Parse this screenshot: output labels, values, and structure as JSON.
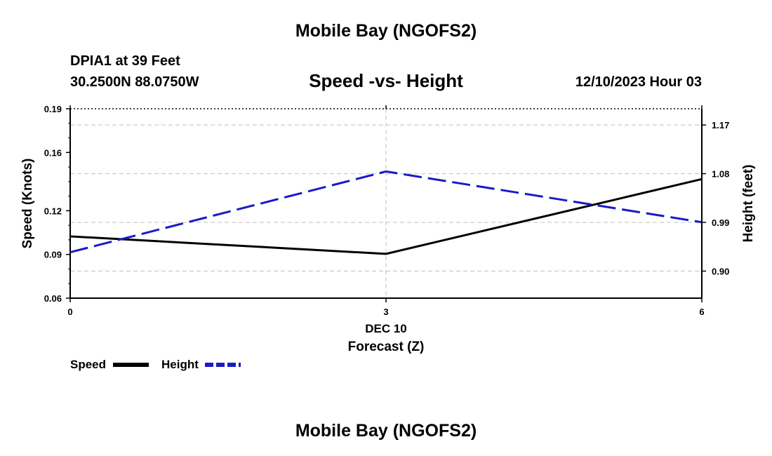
{
  "page": {
    "title_top": "Mobile Bay (NGOFS2)",
    "station": "DPIA1 at 39 Feet",
    "coords": "30.2500N  88.0750W",
    "subtitle": "Speed -vs- Height",
    "datetime": "12/10/2023 Hour 03",
    "title_bottom": "Mobile Bay (NGOFS2)"
  },
  "colors": {
    "speed": "#000000",
    "height": "#1a1ac8",
    "grid": "#c0c0c0"
  },
  "chart_data": {
    "type": "line",
    "title": "Speed -vs- Height",
    "xlabel": "Forecast (Z)",
    "xdate_label": "DEC 10",
    "ylabel": "Speed (Knots)",
    "y2label": "Height (feet)",
    "x": [
      0,
      3,
      6
    ],
    "xticks": [
      "0",
      "3",
      "6"
    ],
    "xlim": [
      0,
      6
    ],
    "ylim": [
      0.06,
      0.19
    ],
    "yticks": [
      "0.06",
      "0.09",
      "0.12",
      "0.16",
      "0.19"
    ],
    "y2lim": [
      0.85,
      1.2
    ],
    "y2ticks": [
      "0.90",
      "0.99",
      "1.08",
      "1.17"
    ],
    "grid": true,
    "legend_position": "bottom-left",
    "series": [
      {
        "name": "Speed",
        "axis": "left",
        "style": "solid",
        "values": [
          0.1024,
          0.0904,
          0.1417
        ]
      },
      {
        "name": "Height",
        "axis": "right",
        "style": "dashed",
        "values": [
          0.9348,
          1.0841,
          0.9903
        ]
      }
    ]
  }
}
